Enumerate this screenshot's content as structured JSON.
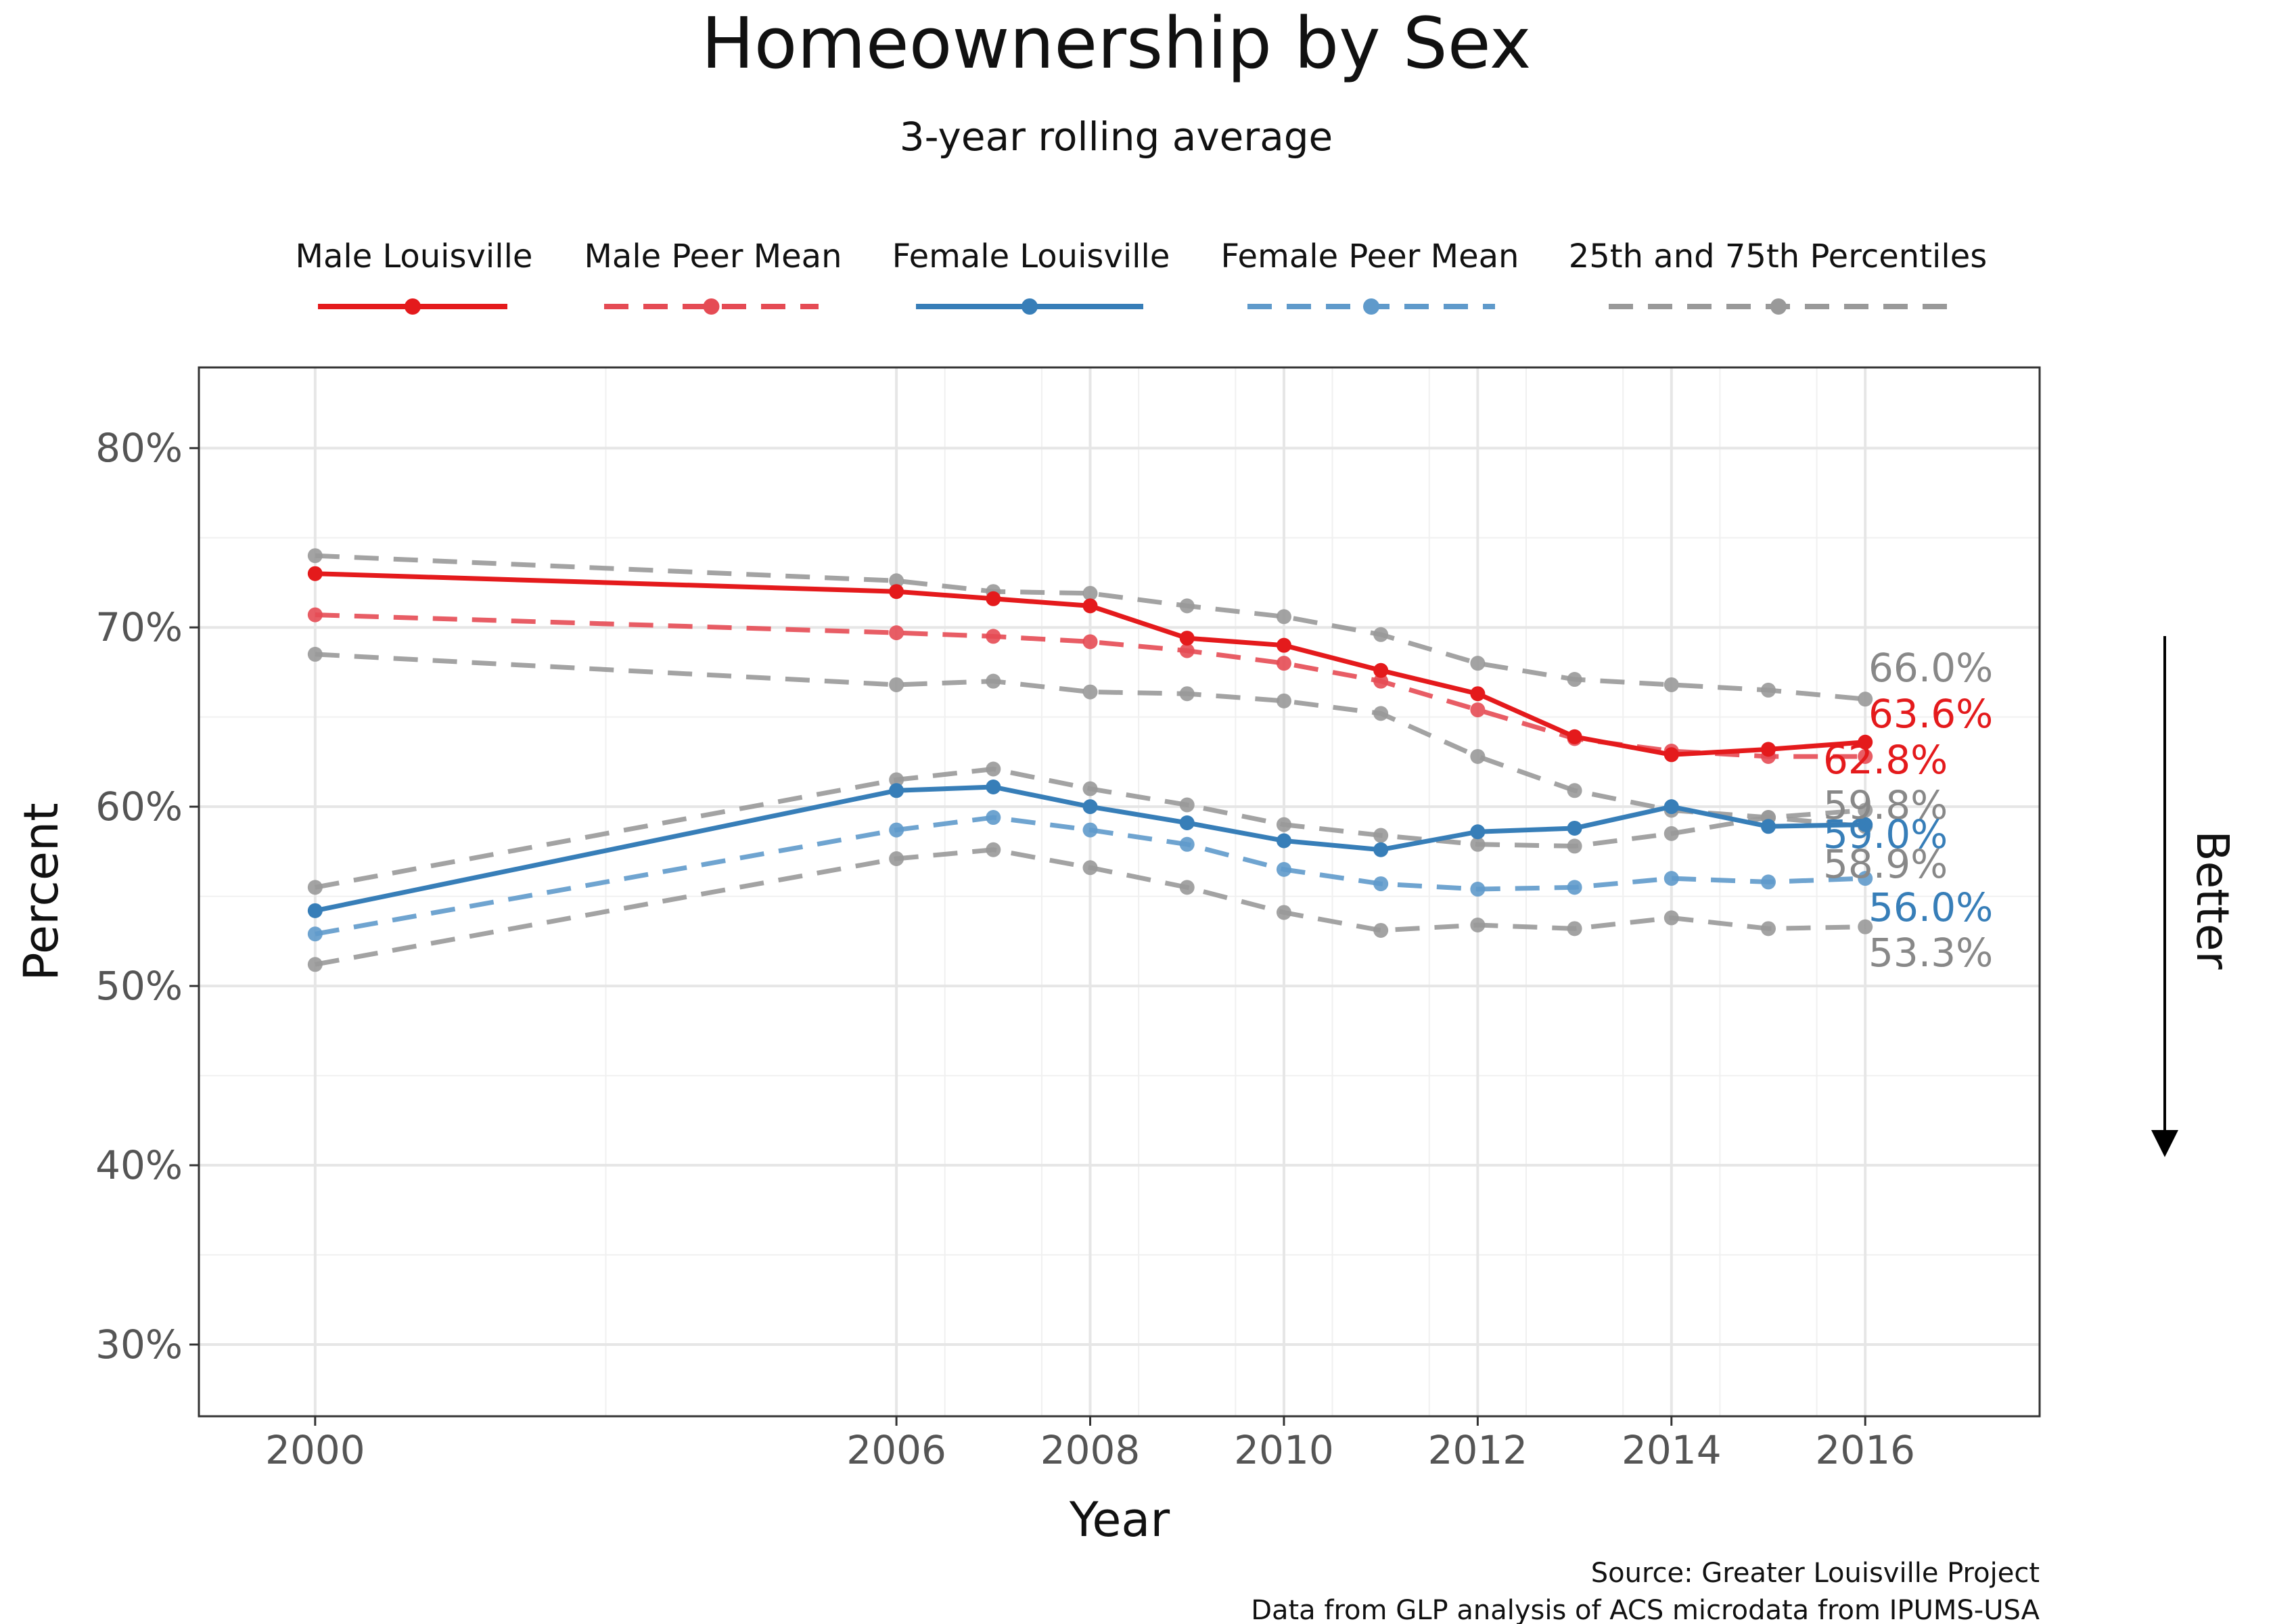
{
  "chart_data": {
    "type": "line",
    "title": "Homeownership by Sex",
    "subtitle": "3-year rolling average",
    "xlabel": "Year",
    "ylabel": "Percent",
    "x_ticks": [
      2000,
      2006,
      2008,
      2010,
      2012,
      2014,
      2016
    ],
    "y_ticks": [
      30,
      40,
      50,
      60,
      70,
      80
    ],
    "y_tick_suffix": "%",
    "xlim": [
      1998.8,
      2017.8
    ],
    "ylim": [
      26,
      84.5
    ],
    "legend_position": "top",
    "grid": true,
    "x": [
      2000,
      2006,
      2007,
      2008,
      2009,
      2010,
      2011,
      2012,
      2013,
      2014,
      2015,
      2016
    ],
    "series": [
      {
        "id": "male-75",
        "legend_ref": "25th and 75th Percentiles",
        "color": "#999999",
        "style": "dashed",
        "values": [
          74.0,
          72.6,
          72.0,
          71.9,
          71.2,
          70.6,
          69.6,
          68.0,
          67.1,
          66.8,
          66.5,
          66.0
        ]
      },
      {
        "id": "male-25",
        "legend_ref": "25th and 75th Percentiles",
        "color": "#999999",
        "style": "dashed",
        "values": [
          68.5,
          66.8,
          67.0,
          66.4,
          66.3,
          65.9,
          65.2,
          62.8,
          60.9,
          59.8,
          59.4,
          59.8
        ]
      },
      {
        "id": "female-75",
        "legend_ref": "25th and 75th Percentiles",
        "color": "#999999",
        "style": "dashed",
        "values": [
          55.5,
          61.5,
          62.1,
          61.0,
          60.1,
          59.0,
          58.4,
          57.9,
          57.8,
          58.5,
          59.4,
          58.9
        ]
      },
      {
        "id": "female-25",
        "legend_ref": "25th and 75th Percentiles",
        "color": "#999999",
        "style": "dashed",
        "values": [
          51.2,
          57.1,
          57.6,
          56.6,
          55.5,
          54.1,
          53.1,
          53.4,
          53.2,
          53.8,
          53.2,
          53.3
        ]
      },
      {
        "id": "female-peer",
        "legend_ref": "Female Peer Mean",
        "color": "#5F9ACB",
        "style": "dashed",
        "values": [
          52.9,
          58.7,
          59.4,
          58.7,
          57.9,
          56.5,
          55.7,
          55.4,
          55.5,
          56.0,
          55.8,
          56.0
        ]
      },
      {
        "id": "male-peer",
        "legend_ref": "Male Peer Mean",
        "color": "#E54B54",
        "style": "dashed",
        "values": [
          70.7,
          69.7,
          69.5,
          69.2,
          68.7,
          68.0,
          67.0,
          65.4,
          63.8,
          63.1,
          62.8,
          62.8
        ]
      },
      {
        "id": "female-lou",
        "legend_ref": "Female Louisville",
        "color": "#377EB8",
        "style": "solid",
        "values": [
          54.2,
          60.9,
          61.1,
          60.0,
          59.1,
          58.1,
          57.6,
          58.6,
          58.8,
          60.0,
          58.9,
          59.0
        ]
      },
      {
        "id": "male-lou",
        "legend_ref": "Male Louisville",
        "color": "#E41A1C",
        "style": "solid",
        "values": [
          73.0,
          72.0,
          71.6,
          71.2,
          69.4,
          69.0,
          67.6,
          66.3,
          63.9,
          62.9,
          63.2,
          63.6
        ]
      }
    ],
    "legend": [
      {
        "label": "Male Louisville",
        "color": "#E41A1C",
        "style": "solid"
      },
      {
        "label": "Male Peer Mean",
        "color": "#E54B54",
        "style": "dashed"
      },
      {
        "label": "Female Louisville",
        "color": "#377EB8",
        "style": "solid"
      },
      {
        "label": "Female Peer Mean",
        "color": "#5F9ACB",
        "style": "dashed"
      },
      {
        "label": "25th and 75th Percentiles",
        "color": "#999999",
        "style": "dashed"
      }
    ],
    "end_labels": [
      {
        "text": "66.0%",
        "value": 66.0,
        "color": "#888888"
      },
      {
        "text": "63.6%",
        "value": 63.6,
        "color": "#E41A1C"
      },
      {
        "text": "62.8%",
        "value": 62.8,
        "color": "#E41A1C"
      },
      {
        "text": "59.8%",
        "value": 59.8,
        "color": "#888888"
      },
      {
        "text": "59.0%",
        "value": 59.0,
        "color": "#377EB8"
      },
      {
        "text": "58.9%",
        "value": 58.9,
        "color": "#888888"
      },
      {
        "text": "56.0%",
        "value": 56.0,
        "color": "#377EB8"
      },
      {
        "text": "53.3%",
        "value": 53.3,
        "color": "#888888"
      }
    ],
    "annotation": "Better",
    "caption_lines": [
      "Source: Greater Louisville Project",
      "Data from GLP analysis of ACS microdata from IPUMS-USA"
    ]
  }
}
